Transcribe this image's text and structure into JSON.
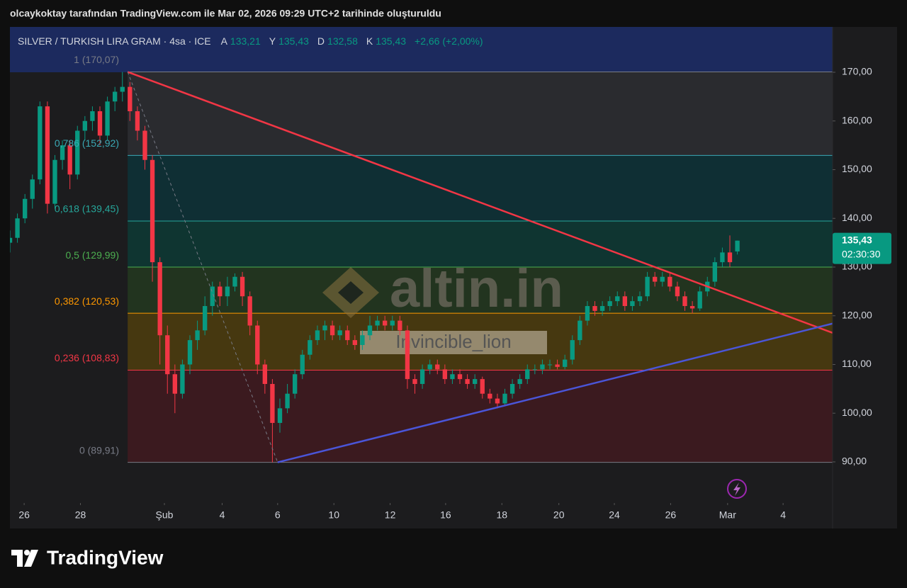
{
  "caption": "olcaykoktay tarafından TradingView.com ile Mar 02, 2026 09:29 UTC+2 tarihinde oluşturuldu",
  "chart_data": {
    "type": "candlestick",
    "symbol": "SILVER / TURKISH LIRA GRAM · 4sa · ICE",
    "legend": [
      {
        "label": "A",
        "value": "133,21"
      },
      {
        "label": "Y",
        "value": "135,43"
      },
      {
        "label": "D",
        "value": "132,58"
      },
      {
        "label": "K",
        "value": "135,43"
      }
    ],
    "change": "+2,66 (+2,00%)",
    "up_color": "#089981",
    "down_color": "#f23645",
    "ohlc": [
      [
        135,
        137.5,
        133,
        136
      ],
      [
        136,
        141,
        135,
        140
      ],
      [
        140,
        145,
        139,
        144
      ],
      [
        144,
        149,
        142,
        148
      ],
      [
        148,
        164,
        147,
        163
      ],
      [
        163,
        164,
        141,
        143
      ],
      [
        143,
        153,
        142,
        152
      ],
      [
        152,
        156,
        150,
        155
      ],
      [
        155,
        156,
        146,
        149
      ],
      [
        149,
        159,
        148,
        158
      ],
      [
        158,
        161,
        156,
        160
      ],
      [
        160,
        163,
        158,
        162
      ],
      [
        162,
        163,
        155,
        157
      ],
      [
        157,
        165,
        156,
        164
      ],
      [
        164,
        167,
        162,
        166
      ],
      [
        166,
        170.07,
        164,
        167
      ],
      [
        167,
        168,
        160,
        162
      ],
      [
        162,
        163,
        156,
        158
      ],
      [
        158,
        159,
        150,
        152
      ],
      [
        152,
        153,
        127,
        131
      ],
      [
        131,
        132,
        110,
        116
      ],
      [
        116,
        118,
        104,
        108
      ],
      [
        108,
        110,
        100,
        104
      ],
      [
        104,
        111,
        103,
        110
      ],
      [
        110,
        116,
        108,
        115
      ],
      [
        115,
        119,
        113,
        117
      ],
      [
        117,
        124,
        116,
        122
      ],
      [
        122,
        127,
        120,
        126
      ],
      [
        126,
        127,
        122,
        124
      ],
      [
        124,
        128,
        122,
        126
      ],
      [
        126,
        128.7,
        125,
        128
      ],
      [
        128,
        129,
        122,
        124
      ],
      [
        124,
        125,
        116,
        118
      ],
      [
        118,
        119,
        108,
        110
      ],
      [
        110,
        111,
        104,
        106
      ],
      [
        106,
        107,
        89.91,
        98
      ],
      [
        98,
        103,
        96,
        101
      ],
      [
        101,
        106,
        100,
        104
      ],
      [
        104,
        109,
        103,
        108
      ],
      [
        108,
        113,
        107,
        112
      ],
      [
        112,
        116,
        111,
        115
      ],
      [
        115,
        118,
        114,
        117
      ],
      [
        117,
        119,
        115,
        118
      ],
      [
        118,
        119,
        115,
        116
      ],
      [
        116,
        118,
        115,
        117
      ],
      [
        117,
        118,
        114,
        115
      ],
      [
        115,
        116,
        113,
        114
      ],
      [
        114,
        117,
        113,
        116
      ],
      [
        116,
        120,
        115,
        118
      ],
      [
        118,
        120,
        117,
        119
      ],
      [
        119,
        120,
        117,
        118
      ],
      [
        118,
        120,
        117,
        119
      ],
      [
        119,
        120,
        116,
        117
      ],
      [
        117,
        118,
        105,
        107
      ],
      [
        107,
        108,
        104,
        106
      ],
      [
        106,
        110,
        105,
        109
      ],
      [
        109,
        111,
        108,
        110
      ],
      [
        110,
        111,
        108,
        109
      ],
      [
        109,
        110,
        106,
        107
      ],
      [
        107,
        109,
        106,
        108
      ],
      [
        108,
        109,
        106,
        107
      ],
      [
        107,
        108,
        105,
        106
      ],
      [
        106,
        108,
        105,
        107
      ],
      [
        107,
        107.5,
        103,
        104
      ],
      [
        104,
        105,
        102,
        103
      ],
      [
        103,
        104,
        101,
        102
      ],
      [
        102,
        105,
        101.5,
        104
      ],
      [
        104,
        107,
        103,
        106
      ],
      [
        106,
        108,
        105,
        107
      ],
      [
        107,
        110,
        106,
        109
      ],
      [
        109,
        110,
        108,
        109
      ],
      [
        109,
        111,
        108,
        110
      ],
      [
        110,
        111,
        109,
        110
      ],
      [
        110,
        111,
        109,
        109.5
      ],
      [
        109.5,
        112,
        109,
        111
      ],
      [
        111,
        116,
        110,
        115
      ],
      [
        115,
        120,
        114,
        119
      ],
      [
        119,
        123,
        118,
        122
      ],
      [
        122,
        123,
        120,
        121
      ],
      [
        121,
        123,
        120,
        122
      ],
      [
        122,
        124,
        121,
        123
      ],
      [
        123,
        125,
        122,
        124
      ],
      [
        124,
        125,
        121,
        122
      ],
      [
        122,
        124,
        121,
        123
      ],
      [
        123,
        125,
        122,
        124
      ],
      [
        124,
        129,
        123,
        128
      ],
      [
        128,
        129,
        126,
        127
      ],
      [
        127,
        129,
        126,
        128
      ],
      [
        128,
        129,
        125,
        126
      ],
      [
        126,
        127,
        123,
        124
      ],
      [
        124,
        125,
        121,
        122
      ],
      [
        122,
        123,
        120.5,
        121.5
      ],
      [
        121.5,
        126,
        121,
        125
      ],
      [
        125,
        128,
        124,
        127
      ],
      [
        127,
        132,
        126,
        131
      ],
      [
        131,
        134,
        130,
        133
      ],
      [
        133,
        136.5,
        130,
        131
      ],
      [
        133.21,
        135.43,
        132.58,
        135.43
      ]
    ],
    "xlim": [
      0,
      109.7
    ],
    "xticks": [
      {
        "value": 1.9,
        "label": "26"
      },
      {
        "value": 9.4,
        "label": "28"
      },
      {
        "value": 20.6,
        "label": "Şub"
      },
      {
        "value": 28.3,
        "label": "4"
      },
      {
        "value": 35.7,
        "label": "6"
      },
      {
        "value": 43.2,
        "label": "10"
      },
      {
        "value": 50.7,
        "label": "12"
      },
      {
        "value": 58.1,
        "label": "16"
      },
      {
        "value": 65.6,
        "label": "18"
      },
      {
        "value": 73.2,
        "label": "20"
      },
      {
        "value": 80.6,
        "label": "24"
      },
      {
        "value": 88.1,
        "label": "26"
      },
      {
        "value": 95.7,
        "label": "Mar"
      },
      {
        "value": 103.1,
        "label": "4"
      }
    ],
    "ylim": [
      81.56,
      179.31
    ],
    "yticks": [
      {
        "value": 90,
        "label": "90,00"
      },
      {
        "value": 100,
        "label": "100,00"
      },
      {
        "value": 110,
        "label": "110,00"
      },
      {
        "value": 120,
        "label": "120,00"
      },
      {
        "value": 130,
        "label": "130,00"
      },
      {
        "value": 140,
        "label": "140,00"
      },
      {
        "value": 150,
        "label": "150,00"
      },
      {
        "value": 160,
        "label": "160,00"
      },
      {
        "value": 170,
        "label": "170,00"
      }
    ],
    "last_price": {
      "value": 135.43,
      "label": "135,43"
    },
    "countdown": "02:30:30",
    "fib_start": 15.7,
    "fib_levels": [
      {
        "value": 170.07,
        "label": "1 (170,07)",
        "color": "#787b86",
        "fill": "#2a2b2f"
      },
      {
        "value": 152.92,
        "label": "0,786 (152,92)",
        "color": "#3aa8b4",
        "fill": "#0f2f34"
      },
      {
        "value": 139.45,
        "label": "0,618 (139,45)",
        "color": "#26a69a",
        "fill": "#0f3531"
      },
      {
        "value": 129.99,
        "label": "0,5 (129,99)",
        "color": "#4caf50",
        "fill": "#22341f"
      },
      {
        "value": 120.53,
        "label": "0,382 (120,53)",
        "color": "#ff9800",
        "fill": "#463810"
      },
      {
        "value": 108.83,
        "label": "0,236 (108,83)",
        "color": "#f23645",
        "fill": "#3b1a1f"
      },
      {
        "value": 89.91,
        "label": "0 (89,91)",
        "color": "#787b86"
      }
    ],
    "trendlines": [
      {
        "color": "#f23645",
        "x": [
          15.7,
          109.7
        ],
        "y": [
          170.07,
          116.5
        ]
      },
      {
        "color": "#4a55d8",
        "x": [
          35.7,
          109.7
        ],
        "y": [
          89.91,
          118.4
        ]
      },
      {
        "color": "#787b86",
        "x": [
          15.7,
          35.7
        ],
        "y": [
          170.07,
          89.91
        ],
        "dashed": true
      }
    ],
    "watermarks": [
      "altin.in",
      "Invincible_lion"
    ]
  },
  "footer": {
    "logo": "TradingView"
  }
}
